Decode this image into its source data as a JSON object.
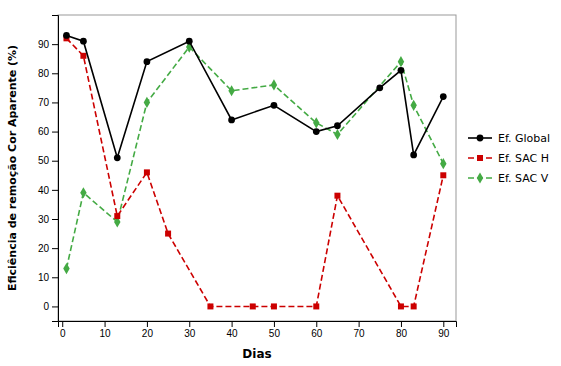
{
  "chart_data": {
    "type": "line",
    "xlabel": "Dias",
    "ylabel": "Eficiência de remoção Cor Aparente (%)",
    "xlim": [
      -1,
      93
    ],
    "ylim": [
      -5,
      100
    ],
    "xticks": [
      0,
      10,
      20,
      30,
      40,
      50,
      60,
      70,
      80,
      90
    ],
    "yticks": [
      0,
      10,
      20,
      30,
      40,
      50,
      60,
      70,
      80,
      90
    ],
    "grid": false,
    "legend": "right",
    "series": [
      {
        "name": "Ef. Global",
        "color": "#000000",
        "marker": "circle",
        "line_style": "solid",
        "x": [
          1,
          5,
          13,
          20,
          30,
          40,
          50,
          60,
          65,
          75,
          80,
          83,
          90
        ],
        "values": [
          93,
          91,
          51,
          84,
          91,
          64,
          69,
          60,
          62,
          75,
          81,
          52,
          72
        ]
      },
      {
        "name": "Ef. SAC H",
        "color": "#cc0000",
        "marker": "square",
        "line_style": "dashed",
        "x": [
          1,
          5,
          13,
          20,
          25,
          35,
          45,
          50,
          60,
          65,
          80,
          83,
          90
        ],
        "values": [
          92,
          86,
          31,
          46,
          25,
          0,
          0,
          0,
          0,
          38,
          0,
          0,
          45
        ]
      },
      {
        "name": "Ef. SAC V",
        "color": "#44aa44",
        "marker": "diamond",
        "line_style": "dashed",
        "x": [
          1,
          5,
          13,
          20,
          30,
          40,
          50,
          60,
          65,
          80,
          83,
          90
        ],
        "values": [
          13,
          39,
          29,
          70,
          89,
          74,
          76,
          63,
          59,
          84,
          69,
          49
        ]
      }
    ]
  }
}
